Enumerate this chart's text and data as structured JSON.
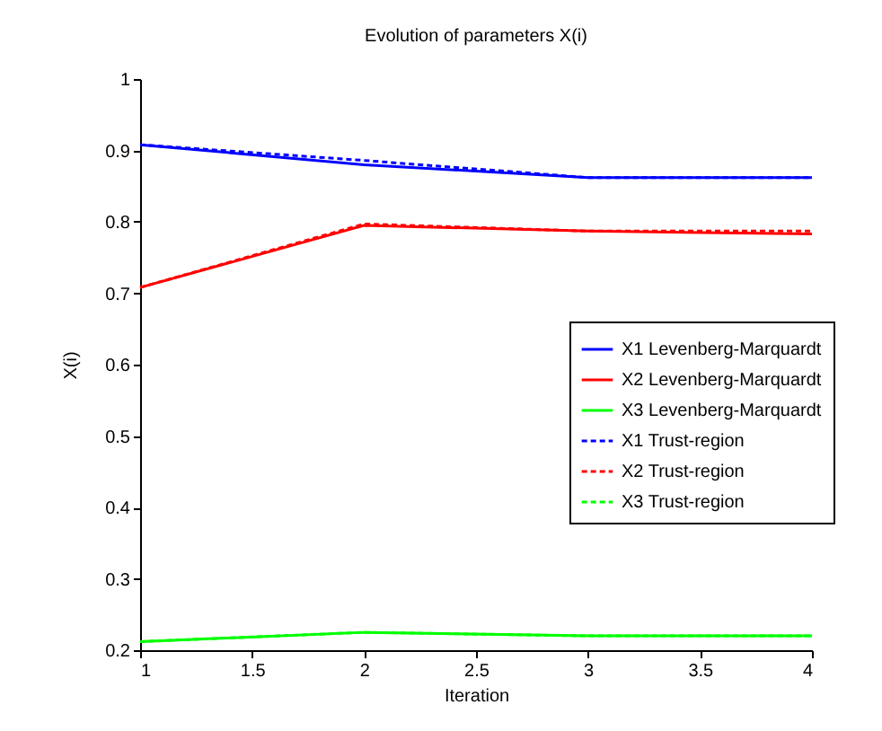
{
  "chart_data": {
    "type": "line",
    "title": "Evolution of parameters X(i)",
    "xlabel": "Iteration",
    "ylabel": "X(i)",
    "x": [
      1,
      2,
      3,
      4
    ],
    "series": [
      {
        "name": "X1 Levenberg-Marquardt",
        "color": "#0000ff",
        "line_style": "solid",
        "values": [
          0.908,
          0.88,
          0.862,
          0.862
        ]
      },
      {
        "name": "X2 Levenberg-Marquardt",
        "color": "#ff0000",
        "line_style": "solid",
        "values": [
          0.708,
          0.795,
          0.787,
          0.783
        ]
      },
      {
        "name": "X3 Levenberg-Marquardt",
        "color": "#00ff00",
        "line_style": "solid",
        "values": [
          0.212,
          0.225,
          0.22,
          0.22
        ]
      },
      {
        "name": "X1 Trust-region",
        "color": "#0000ff",
        "line_style": "dashed",
        "values": [
          0.908,
          0.886,
          0.862,
          0.862
        ]
      },
      {
        "name": "X2 Trust-region",
        "color": "#ff0000",
        "line_style": "dashed",
        "values": [
          0.708,
          0.797,
          0.787,
          0.787
        ]
      },
      {
        "name": "X3 Trust-region",
        "color": "#00ff00",
        "line_style": "dashed",
        "values": [
          0.212,
          0.225,
          0.22,
          0.22
        ]
      }
    ],
    "xlim": [
      1,
      4
    ],
    "xticks": [
      1,
      1.5,
      2,
      2.5,
      3,
      3.5,
      4
    ],
    "ylim": [
      0.2,
      1
    ],
    "yticks": [
      0.2,
      0.3,
      0.4,
      0.5,
      0.6,
      0.7,
      0.8,
      0.9,
      1
    ],
    "grid": false,
    "legend": "right",
    "marker": "none"
  }
}
